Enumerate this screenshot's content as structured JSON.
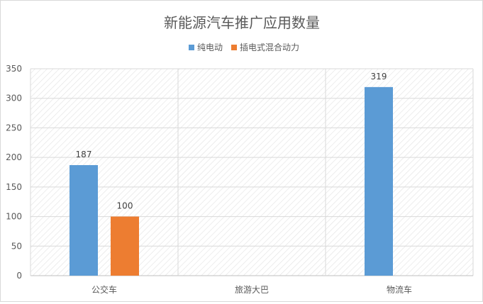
{
  "chart_data": {
    "type": "bar",
    "title": "新能源汽车推广应用数量",
    "categories": [
      "公交车",
      "旅游大巴",
      "物流车"
    ],
    "series": [
      {
        "name": "纯电动",
        "color": "#5b9bd5",
        "values": [
          187,
          null,
          319
        ]
      },
      {
        "name": "插电式混合动力",
        "color": "#ed7d31",
        "values": [
          100,
          null,
          null
        ]
      }
    ],
    "ylim": [
      0,
      350
    ],
    "yticks": [
      0,
      50,
      100,
      150,
      200,
      250,
      300,
      350
    ],
    "legend_position": "top",
    "grid": true,
    "data_labels": true
  }
}
